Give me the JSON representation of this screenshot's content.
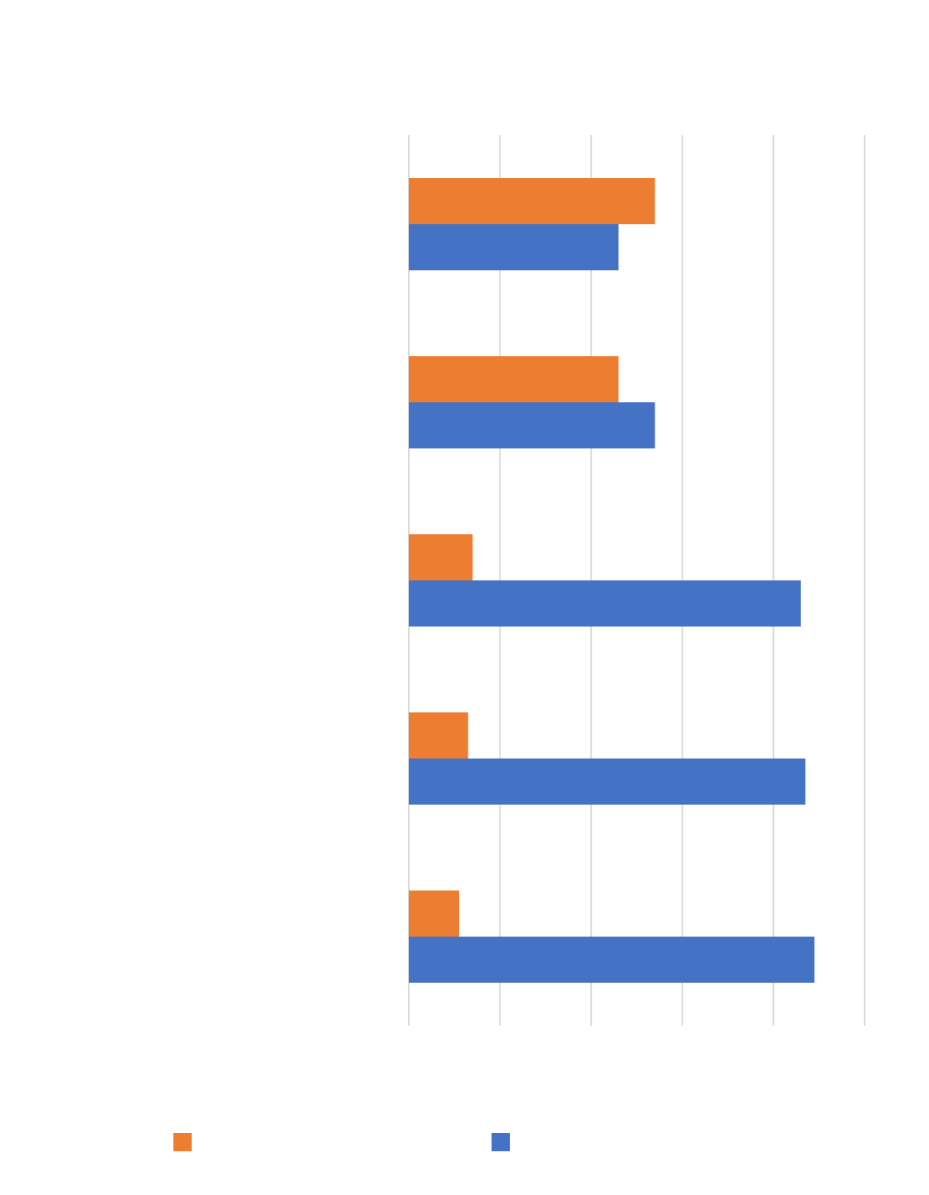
{
  "chart_data": {
    "type": "bar",
    "orientation": "horizontal",
    "title": "",
    "xlabel": "",
    "ylabel": "",
    "categories": [
      "",
      "",
      "",
      "",
      ""
    ],
    "xlim": [
      0,
      100
    ],
    "grid": true,
    "legend_position": "bottom",
    "series": [
      {
        "name": "",
        "color": "#ED7D31",
        "values": [
          54,
          46,
          14,
          13,
          11
        ]
      },
      {
        "name": "",
        "color": "#4472C4",
        "values": [
          46,
          54,
          86,
          87,
          89
        ]
      }
    ]
  }
}
